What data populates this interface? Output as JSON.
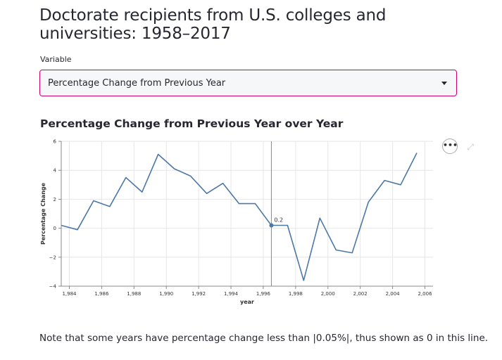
{
  "page_title": "Doctorate recipients from U.S. colleges and universities: 1958–2017",
  "variable_select": {
    "label": "Variable",
    "value": "Percentage Change from Previous Year"
  },
  "chart_header": "Percentage Change from Previous Year over Year",
  "menu_glyph": "•••",
  "note": "Note that some years have percentage change less than |0.05%|, thus shown as 0 in this line.",
  "colors": {
    "accent": "#d10071",
    "line": "#4c78a8",
    "rule": "#888888"
  },
  "icons": [
    "caret-down-icon",
    "more-options-icon",
    "expand-icon"
  ],
  "chart_data": {
    "type": "line",
    "xlabel": "year",
    "ylabel": "Percentage Change",
    "xlim": [
      1983.5,
      2006.5
    ],
    "ylim": [
      -4,
      6
    ],
    "x_ticks": [
      1984,
      1986,
      1988,
      1990,
      1992,
      1994,
      1996,
      1998,
      2000,
      2002,
      2004,
      2006
    ],
    "x_tick_labels": [
      "1,984",
      "1,986",
      "1,988",
      "1,990",
      "1,992",
      "1,994",
      "1,996",
      "1,998",
      "2,000",
      "2,002",
      "2,004",
      "2,006"
    ],
    "y_ticks": [
      -4,
      -2,
      0,
      2,
      4,
      6
    ],
    "y_tick_labels": [
      "−4",
      "−2",
      "0",
      "2",
      "4",
      "6"
    ],
    "grid": true,
    "x": [
      1983.5,
      1984.5,
      1985.5,
      1986.5,
      1987.5,
      1988.5,
      1989.5,
      1990.5,
      1991.5,
      1992.5,
      1993.5,
      1994.5,
      1995.5,
      1996.5,
      1997.5,
      1998.5,
      1999.5,
      2000.5,
      2001.5,
      2002.5,
      2003.5,
      2004.5,
      2005.5
    ],
    "values": [
      0.2,
      -0.1,
      1.9,
      1.5,
      3.5,
      2.5,
      5.1,
      4.1,
      3.6,
      2.4,
      3.1,
      1.7,
      1.7,
      0.2,
      0.2,
      -3.6,
      0.7,
      -1.5,
      -1.7,
      1.8,
      3.3,
      3.0,
      5.2
    ],
    "highlight": {
      "x": 1996.5,
      "value": 0.2,
      "label": "0.2"
    }
  }
}
